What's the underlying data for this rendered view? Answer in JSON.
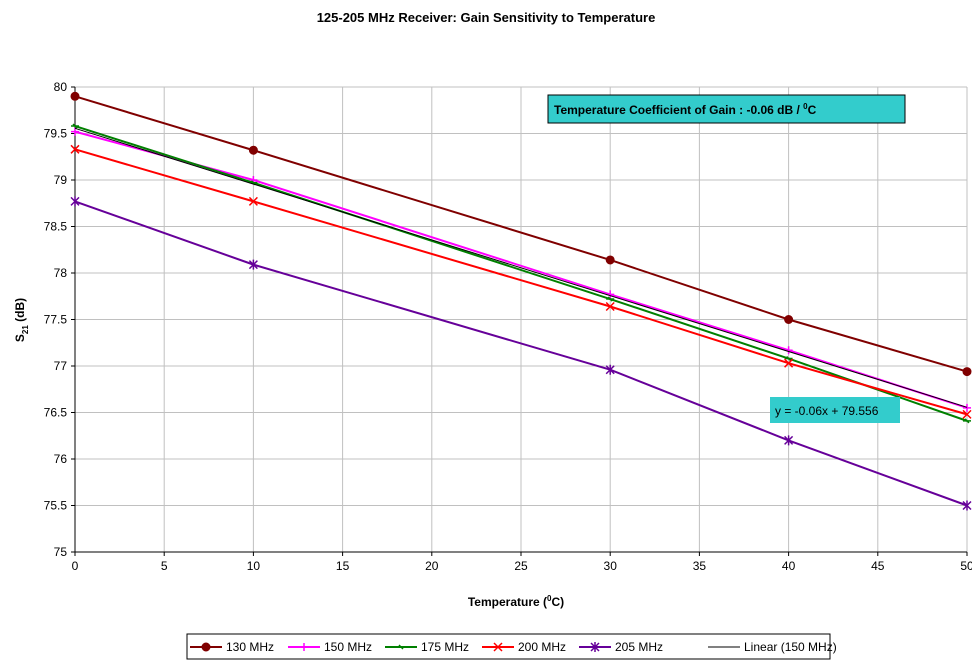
{
  "chart_data": {
    "type": "line",
    "title": "125-205 MHz Receiver: Gain Sensitivity to Temperature",
    "x_label": {
      "text": "Temperature (",
      "sup": "0",
      "after": "C)"
    },
    "y_label": {
      "text": "S",
      "sub": "21",
      "after": " (dB)"
    },
    "x": [
      0,
      10,
      30,
      40,
      50
    ],
    "xlim": [
      0,
      50
    ],
    "xticks": [
      0,
      5,
      10,
      15,
      20,
      25,
      30,
      35,
      40,
      45,
      50
    ],
    "ylim": [
      75,
      80
    ],
    "yticks": [
      75,
      75.5,
      76,
      76.5,
      77,
      77.5,
      78,
      78.5,
      79,
      79.5,
      80
    ],
    "grid": true,
    "legend": "bottom",
    "series": [
      {
        "name": "130 MHz",
        "color": "#800000",
        "marker": "circle",
        "values": [
          79.9,
          79.32,
          78.14,
          77.5,
          76.94
        ]
      },
      {
        "name": "150 MHz",
        "color": "#ff00ff",
        "marker": "plus",
        "values": [
          79.52,
          79.0,
          77.77,
          77.17,
          76.55
        ]
      },
      {
        "name": "175 MHz",
        "color": "#008000",
        "marker": "dash",
        "values": [
          79.58,
          78.97,
          77.72,
          77.08,
          76.41
        ]
      },
      {
        "name": "200 MHz",
        "color": "#ff0000",
        "marker": "x",
        "values": [
          79.33,
          78.77,
          77.64,
          77.03,
          76.48
        ]
      },
      {
        "name": "205 MHz",
        "color": "#660099",
        "marker": "asterisk",
        "values": [
          78.77,
          78.09,
          76.96,
          76.2,
          75.5
        ]
      },
      {
        "name": "Linear (150 MHz)",
        "color": "#000000",
        "marker": "none",
        "x": [
          0,
          50
        ],
        "values": [
          79.556,
          76.556
        ]
      }
    ],
    "annotations": [
      {
        "text": "Temperature Coefficient of Gain : -0.06 dB / ",
        "sup": "0",
        "after": "C"
      },
      {
        "text": "y = -0.06x + 79.556"
      }
    ]
  }
}
